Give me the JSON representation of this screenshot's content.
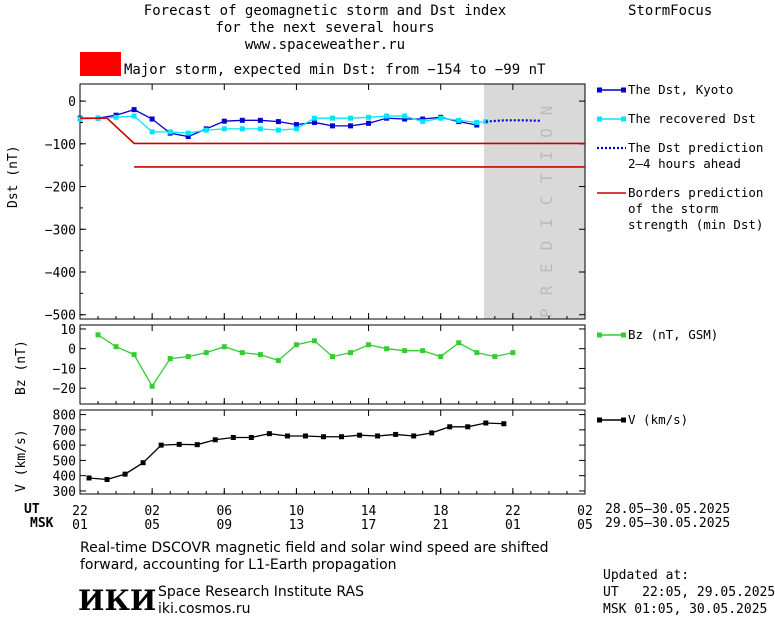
{
  "header": {
    "title_line1": "Forecast of geomagnetic storm and Dst index",
    "title_line2": "for the next several hours",
    "title_line3": "www.spaceweather.ru",
    "brand": "StormFocus"
  },
  "alert": {
    "text": "Major storm, expected min Dst: from −154 to −99 nT",
    "color": "#ff0000"
  },
  "footer": {
    "note_line1": "Real-time DSCOVR magnetic field and solar wind speed are shifted",
    "note_line2": "forward, accounting for L1-Earth propagation",
    "institute": "Space Research Institute RAS",
    "website": "iki.cosmos.ru",
    "logo_text": "ИКИ",
    "updated_label": "Updated at:",
    "updated_ut": "UT   22:05, 29.05.2025",
    "updated_msk": "MSK 01:05, 30.05.2025"
  },
  "time_axis": {
    "ut_label": "UT",
    "msk_label": "MSK",
    "ut_ticks": [
      "22",
      "02",
      "06",
      "10",
      "14",
      "18",
      "22",
      "02"
    ],
    "msk_ticks": [
      "01",
      "05",
      "09",
      "13",
      "17",
      "21",
      "01",
      "05"
    ],
    "ut_range": "28.05–30.05.2025",
    "msk_range": "29.05–30.05.2025"
  },
  "chart_data": [
    {
      "type": "line",
      "panel": "dst",
      "ylabel": "Dst (nT)",
      "ylim": [
        -510,
        40
      ],
      "yticks": [
        0,
        -100,
        -200,
        -300,
        -400,
        -500
      ],
      "ytick_labels": [
        "0",
        "−100",
        "−200",
        "−300",
        "−400",
        "−500"
      ],
      "xlim": [
        22,
        50
      ],
      "prediction_zone": {
        "start": 44.4,
        "end": 50,
        "label": "PREDICTION",
        "color": "#d9d9d9"
      },
      "series": [
        {
          "name": "The Dst, Kyoto",
          "color": "#0000cc",
          "x": [
            22,
            23,
            24,
            25,
            26,
            27,
            28,
            29,
            30,
            31,
            32,
            33,
            34,
            35,
            36,
            37,
            38,
            39,
            40,
            41,
            42,
            43,
            44
          ],
          "values": [
            -40,
            -40,
            -33,
            -20,
            -42,
            -75,
            -83,
            -65,
            -47,
            -45,
            -45,
            -48,
            -55,
            -50,
            -58,
            -58,
            -52,
            -40,
            -42,
            -42,
            -38,
            -48,
            -56
          ]
        },
        {
          "name": "The recovered Dst",
          "color": "#00e5ff",
          "x": [
            22,
            23,
            24,
            25,
            26,
            27,
            28,
            29,
            30,
            31,
            32,
            33,
            34,
            35,
            36,
            37,
            38,
            39,
            40,
            41,
            42,
            43,
            44,
            44.5
          ],
          "values": [
            -42,
            -40,
            -38,
            -35,
            -72,
            -72,
            -75,
            -68,
            -65,
            -65,
            -65,
            -68,
            -65,
            -40,
            -40,
            -40,
            -38,
            -35,
            -35,
            -48,
            -40,
            -45,
            -50,
            -48
          ]
        },
        {
          "name": "The Dst prediction 2–4 hours ahead",
          "color": "#0000cc",
          "style": "dotted",
          "x": [
            44.5,
            45.5,
            46.5,
            47.5
          ],
          "values": [
            -48,
            -45,
            -45,
            -46
          ]
        },
        {
          "name": "Borders prediction of the storm strength (min Dst)",
          "color": "#cc0000",
          "lines": [
            {
              "x": [
                22,
                23.5,
                25,
                50
              ],
              "values": [
                -40,
                -40,
                -99,
                -99
              ]
            },
            {
              "x": [
                25,
                50
              ],
              "values": [
                -154,
                -154
              ]
            }
          ]
        }
      ]
    },
    {
      "type": "line",
      "panel": "bz",
      "ylabel": "Bz (nT)",
      "ylim": [
        -28,
        12
      ],
      "yticks": [
        10,
        0,
        -10,
        -20
      ],
      "ytick_labels": [
        "10",
        "0",
        "−10",
        "−20"
      ],
      "xlim": [
        22,
        50
      ],
      "series": [
        {
          "name": "Bz (nT, GSM)",
          "color": "#33cc33",
          "x": [
            23,
            24,
            25,
            26,
            27,
            28,
            29,
            30,
            31,
            32,
            33,
            34,
            35,
            36,
            37,
            38,
            39,
            40,
            41,
            42,
            43,
            44,
            45,
            46
          ],
          "values": [
            7,
            1,
            -3,
            -19,
            -5,
            -4,
            -2,
            1,
            -2,
            -3,
            -6,
            2,
            4,
            -4,
            -2,
            2,
            0,
            -1,
            -1,
            -4,
            3,
            -2,
            -4,
            -2
          ]
        }
      ]
    },
    {
      "type": "line",
      "panel": "v",
      "ylabel": "V (km/s)",
      "ylim": [
        280,
        830
      ],
      "yticks": [
        800,
        700,
        600,
        500,
        400,
        300
      ],
      "ytick_labels": [
        "800",
        "700",
        "600",
        "500",
        "400",
        "300"
      ],
      "xlim": [
        22,
        50
      ],
      "series": [
        {
          "name": "V (km/s)",
          "color": "#000000",
          "x": [
            22.5,
            23.5,
            24.5,
            25.5,
            26.5,
            27.5,
            28.5,
            29.5,
            30.5,
            31.5,
            32.5,
            33.5,
            34.5,
            35.5,
            36.5,
            37.5,
            38.5,
            39.5,
            40.5,
            41.5,
            42.5,
            43.5,
            44.5,
            45.5
          ],
          "values": [
            385,
            375,
            410,
            485,
            600,
            605,
            603,
            635,
            650,
            650,
            675,
            660,
            660,
            655,
            655,
            665,
            660,
            670,
            660,
            680,
            720,
            720,
            745,
            740
          ]
        }
      ]
    }
  ]
}
